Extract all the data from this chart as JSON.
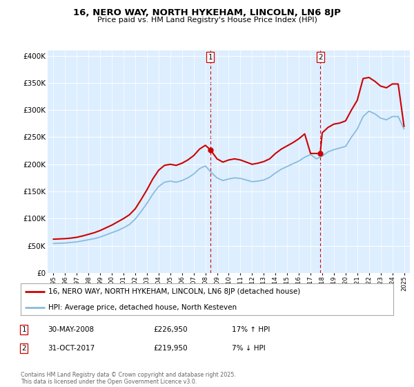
{
  "title": "16, NERO WAY, NORTH HYKEHAM, LINCOLN, LN6 8JP",
  "subtitle": "Price paid vs. HM Land Registry's House Price Index (HPI)",
  "ylabel_ticks": [
    "£0",
    "£50K",
    "£100K",
    "£150K",
    "£200K",
    "£250K",
    "£300K",
    "£350K",
    "£400K"
  ],
  "ytick_values": [
    0,
    50000,
    100000,
    150000,
    200000,
    250000,
    300000,
    350000,
    400000
  ],
  "ylim": [
    0,
    410000
  ],
  "xlim_start": 1994.5,
  "xlim_end": 2025.5,
  "red_color": "#cc0000",
  "blue_color": "#88bbdd",
  "background_color": "#ddeeff",
  "plot_bg": "#ddeeff",
  "marker1_x": 2008.42,
  "marker1_y": 226950,
  "marker1_label": "1",
  "marker2_x": 2017.83,
  "marker2_y": 219950,
  "marker2_label": "2",
  "legend_line1": "16, NERO WAY, NORTH HYKEHAM, LINCOLN, LN6 8JP (detached house)",
  "legend_line2": "HPI: Average price, detached house, North Kesteven",
  "table_row1": [
    "1",
    "30-MAY-2008",
    "£226,950",
    "17% ↑ HPI"
  ],
  "table_row2": [
    "2",
    "31-OCT-2017",
    "£219,950",
    "7% ↓ HPI"
  ],
  "footer": "Contains HM Land Registry data © Crown copyright and database right 2025.\nThis data is licensed under the Open Government Licence v3.0.",
  "hpi_years": [
    1995,
    1995.5,
    1996,
    1996.5,
    1997,
    1997.5,
    1998,
    1998.5,
    1999,
    1999.5,
    2000,
    2000.5,
    2001,
    2001.5,
    2002,
    2002.5,
    2003,
    2003.5,
    2004,
    2004.5,
    2005,
    2005.5,
    2006,
    2006.5,
    2007,
    2007.5,
    2008,
    2008.5,
    2009,
    2009.5,
    2010,
    2010.5,
    2011,
    2011.5,
    2012,
    2012.5,
    2013,
    2013.5,
    2014,
    2014.5,
    2015,
    2015.5,
    2016,
    2016.5,
    2017,
    2017.5,
    2018,
    2018.5,
    2019,
    2019.5,
    2020,
    2020.5,
    2021,
    2021.5,
    2022,
    2022.5,
    2023,
    2023.5,
    2024,
    2024.5,
    2025
  ],
  "hpi_values": [
    54000,
    54500,
    55000,
    56000,
    57000,
    59000,
    61000,
    63000,
    66000,
    70000,
    74000,
    78000,
    83000,
    89000,
    99000,
    113000,
    128000,
    145000,
    159000,
    167000,
    169000,
    167000,
    170000,
    175000,
    182000,
    192000,
    197000,
    185000,
    175000,
    170000,
    173000,
    175000,
    174000,
    171000,
    168000,
    169000,
    171000,
    176000,
    184000,
    191000,
    196000,
    201000,
    206000,
    213000,
    218000,
    210000,
    215000,
    223000,
    227000,
    230000,
    233000,
    250000,
    265000,
    288000,
    298000,
    293000,
    285000,
    282000,
    288000,
    288000,
    265000
  ],
  "red_years": [
    1995,
    1995.5,
    1996,
    1996.5,
    1997,
    1997.5,
    1998,
    1998.5,
    1999,
    1999.5,
    2000,
    2000.5,
    2001,
    2001.5,
    2002,
    2002.5,
    2003,
    2003.5,
    2004,
    2004.5,
    2005,
    2005.5,
    2006,
    2006.5,
    2007,
    2007.5,
    2008,
    2008.42,
    2009,
    2009.5,
    2010,
    2010.5,
    2011,
    2011.5,
    2012,
    2012.5,
    2013,
    2013.5,
    2014,
    2014.5,
    2015,
    2015.5,
    2016,
    2016.5,
    2017,
    2017.83,
    2018,
    2018.5,
    2019,
    2019.5,
    2020,
    2020.5,
    2021,
    2021.5,
    2022,
    2022.5,
    2023,
    2023.5,
    2024,
    2024.5,
    2025
  ],
  "red_values": [
    62000,
    62500,
    63000,
    64000,
    65500,
    68000,
    71000,
    74000,
    78000,
    83000,
    88000,
    94000,
    100000,
    107000,
    118000,
    135000,
    153000,
    173000,
    189000,
    198000,
    200000,
    198000,
    202000,
    208000,
    216000,
    228000,
    235000,
    226950,
    210000,
    204000,
    208000,
    210000,
    208000,
    204000,
    200000,
    202000,
    205000,
    210000,
    220000,
    228000,
    234000,
    240000,
    247000,
    256000,
    219950,
    219950,
    258000,
    268000,
    274000,
    276000,
    280000,
    300000,
    318000,
    358000,
    360000,
    353000,
    344000,
    341000,
    348000,
    348000,
    270000
  ]
}
